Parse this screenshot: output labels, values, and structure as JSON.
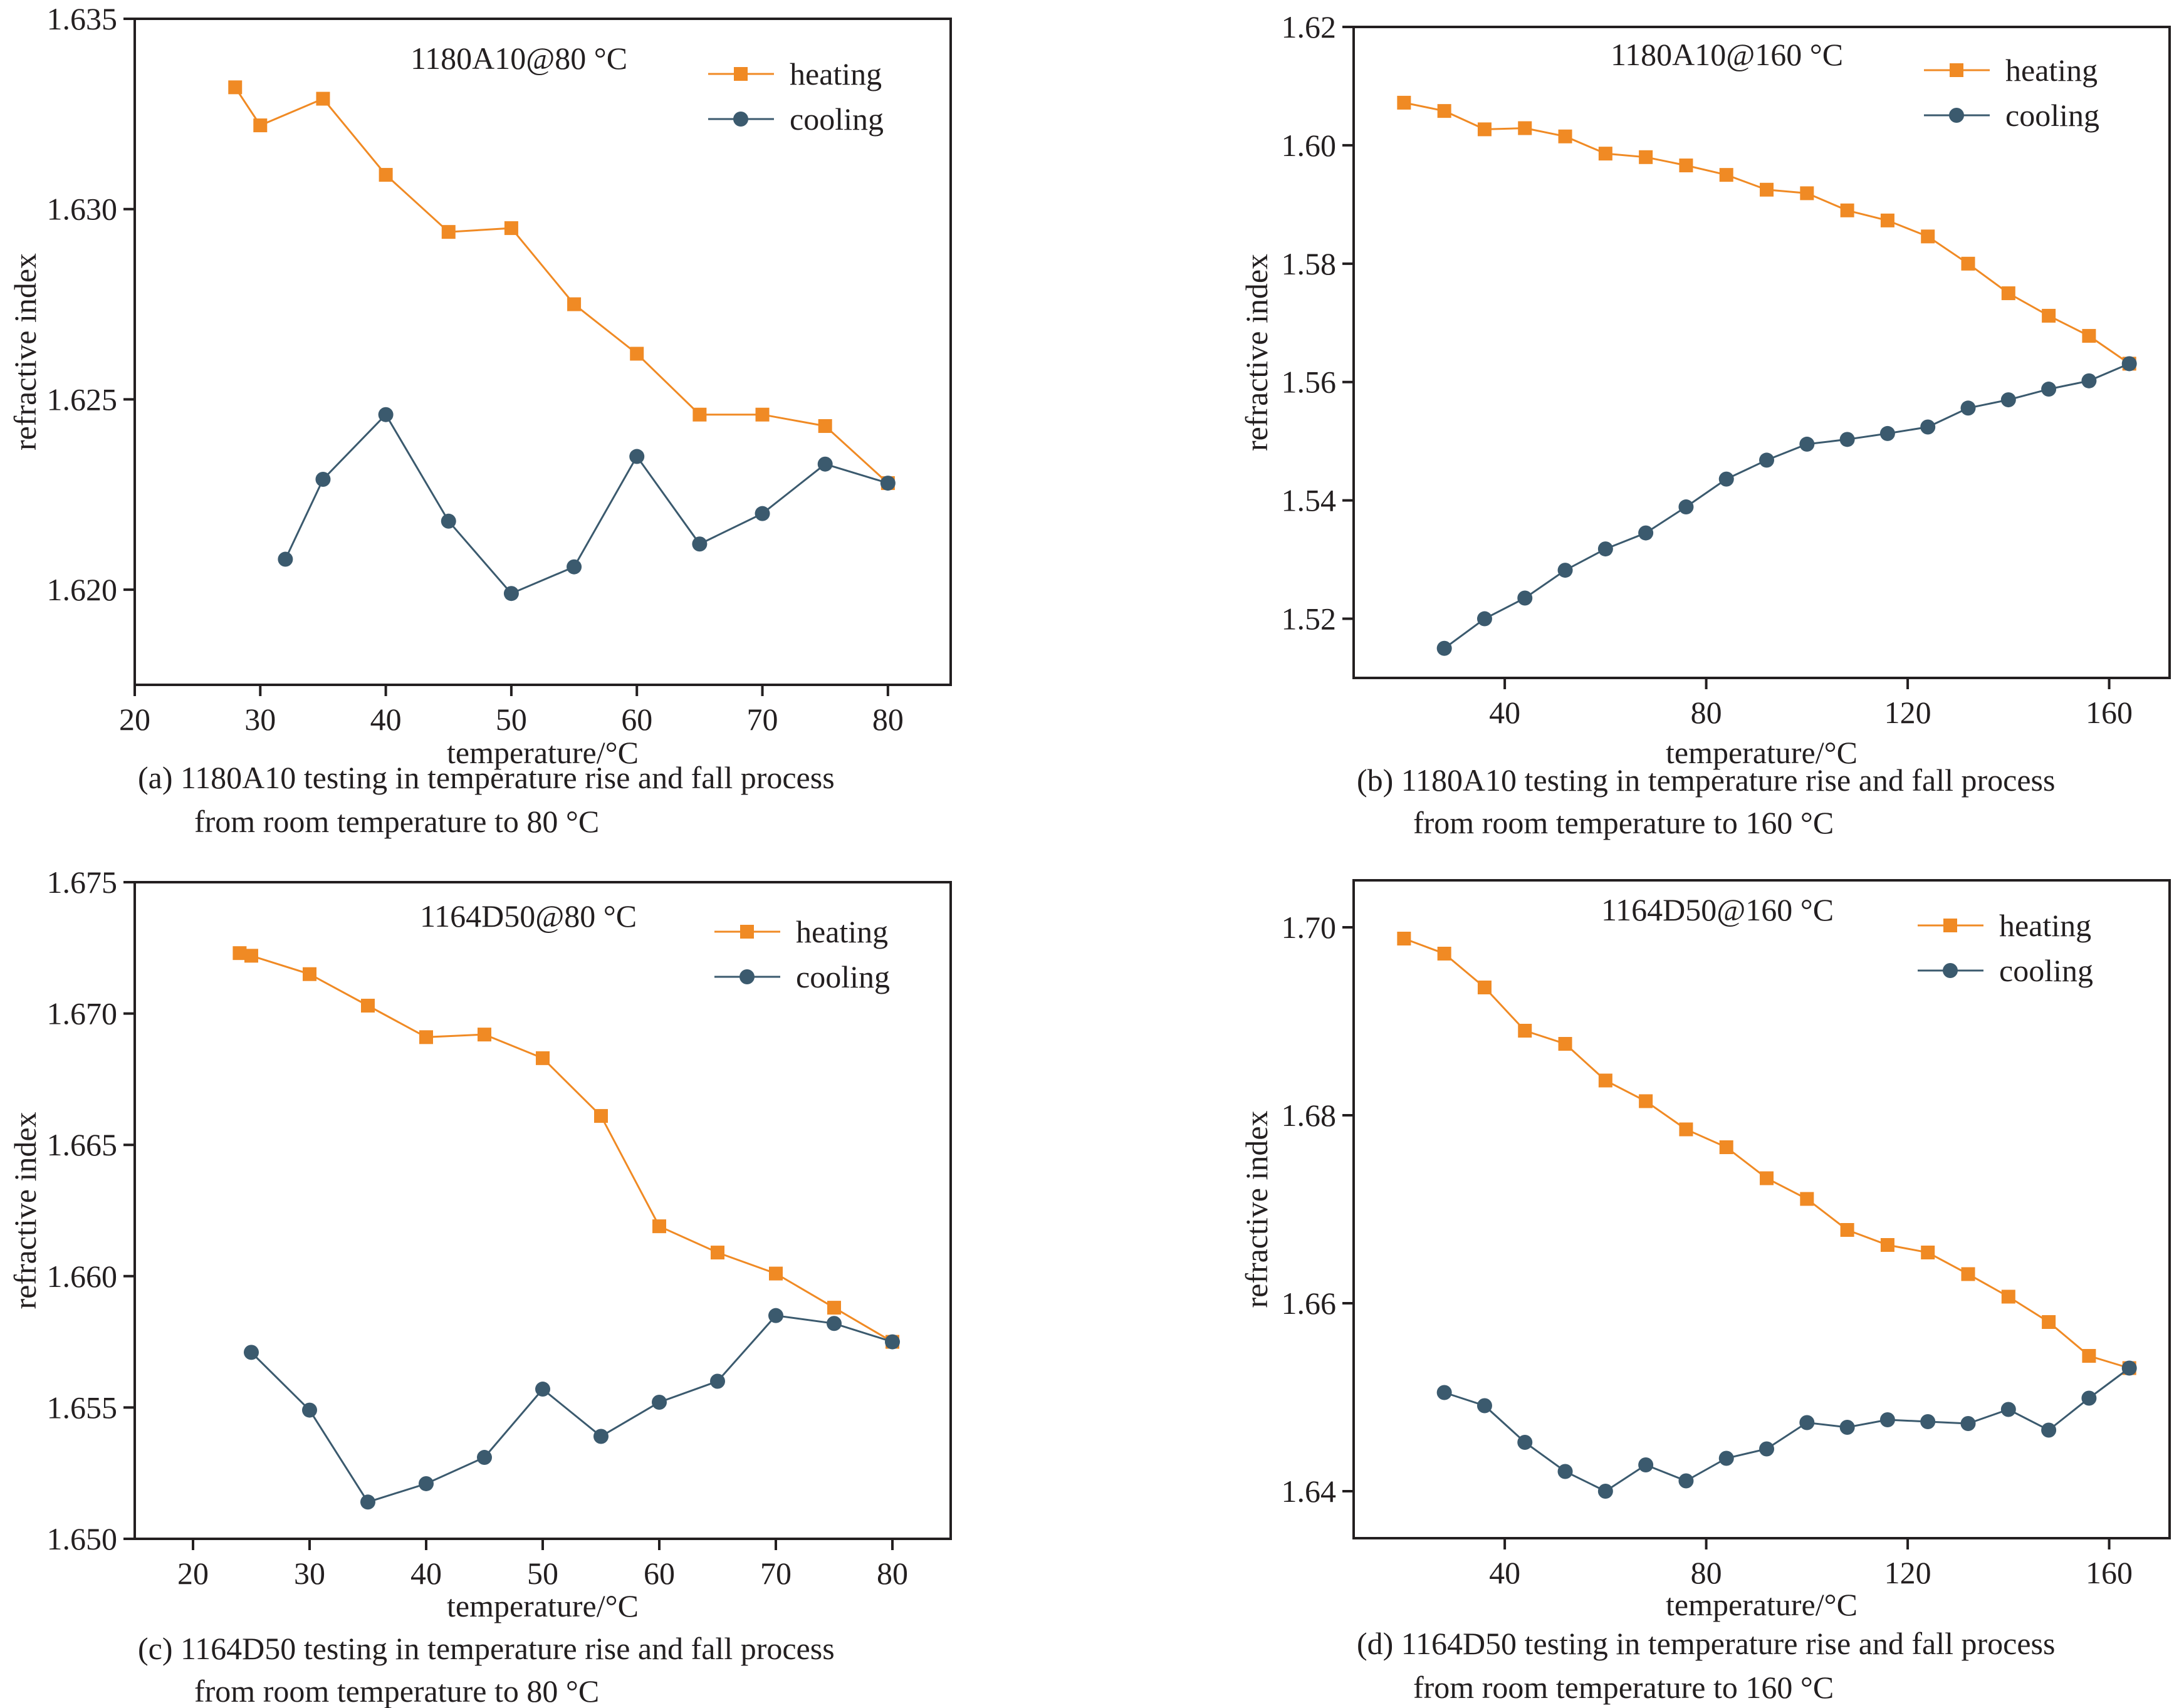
{
  "colors": {
    "heating": "#f08a24",
    "cooling": "#3b5a6e",
    "axis": "#231f20"
  },
  "chart_data": [
    {
      "type": "line",
      "title": "1180A10@80 °C",
      "xlabel": "temperature/°C",
      "ylabel": "refractive index",
      "caption": [
        "(a) 1180A10 testing in temperature rise and fall process",
        "from room temperature to 80 °C"
      ],
      "xlim": [
        20,
        85
      ],
      "ylim": [
        1.6175,
        1.635
      ],
      "xticks": [
        20,
        30,
        40,
        50,
        60,
        70,
        80
      ],
      "xtick_labels": [
        "20",
        "30",
        "40",
        "50",
        "60",
        "70",
        "80"
      ],
      "yticks": [
        1.62,
        1.625,
        1.63,
        1.635
      ],
      "ytick_labels": [
        "1.620",
        "1.625",
        "1.630",
        "1.635"
      ],
      "legend_position": "top-right",
      "series": [
        {
          "name": "heating",
          "marker": "square",
          "x": [
            28,
            30,
            35,
            40,
            45,
            50,
            55,
            60,
            65,
            70,
            75,
            80
          ],
          "y": [
            1.6332,
            1.6322,
            1.6329,
            1.6309,
            1.6294,
            1.6295,
            1.6275,
            1.6262,
            1.6246,
            1.6246,
            1.6243,
            1.6228
          ]
        },
        {
          "name": "cooling",
          "marker": "circle",
          "x": [
            32,
            35,
            40,
            45,
            50,
            55,
            60,
            65,
            70,
            75,
            80
          ],
          "y": [
            1.6208,
            1.6229,
            1.6246,
            1.6218,
            1.6199,
            1.6206,
            1.6235,
            1.6212,
            1.622,
            1.6233,
            1.6228
          ]
        }
      ]
    },
    {
      "type": "line",
      "title": "1180A10@160 °C",
      "xlabel": "temperature/°C",
      "ylabel": "refractive index",
      "caption": [
        "(b) 1180A10 testing in temperature rise and fall process",
        "from room temperature to 160 °C"
      ],
      "xlim": [
        10,
        172
      ],
      "ylim": [
        1.51,
        1.62
      ],
      "xticks": [
        40,
        80,
        120,
        160
      ],
      "xtick_labels": [
        "40",
        "80",
        "120",
        "160"
      ],
      "yticks": [
        1.52,
        1.54,
        1.56,
        1.58,
        1.6,
        1.62
      ],
      "ytick_labels": [
        "1.52",
        "1.54",
        "1.56",
        "1.58",
        "1.60",
        "1.62"
      ],
      "legend_position": "top-right",
      "series": [
        {
          "name": "heating",
          "marker": "square",
          "x": [
            20,
            28,
            36,
            44,
            52,
            60,
            68,
            76,
            84,
            92,
            100,
            108,
            116,
            124,
            132,
            140,
            148,
            156,
            164
          ],
          "y": [
            1.6072,
            1.6058,
            1.6027,
            1.6029,
            1.6015,
            1.5986,
            1.598,
            1.5966,
            1.595,
            1.5925,
            1.5919,
            1.589,
            1.5873,
            1.5846,
            1.58,
            1.575,
            1.5712,
            1.5678,
            1.5631
          ]
        },
        {
          "name": "cooling",
          "marker": "circle",
          "x": [
            28,
            36,
            44,
            52,
            60,
            68,
            76,
            84,
            92,
            100,
            108,
            116,
            124,
            132,
            140,
            148,
            156,
            164
          ],
          "y": [
            1.515,
            1.52,
            1.5235,
            1.5282,
            1.5318,
            1.5345,
            1.5389,
            1.5436,
            1.5468,
            1.5495,
            1.5503,
            1.5513,
            1.5524,
            1.5556,
            1.557,
            1.5588,
            1.5602,
            1.5631
          ]
        }
      ]
    },
    {
      "type": "line",
      "title": "1164D50@80 °C",
      "xlabel": "temperature/°C",
      "ylabel": "refractive index",
      "caption": [
        "(c) 1164D50 testing in temperature rise and fall process",
        "from room temperature to 80 °C"
      ],
      "xlim": [
        15,
        85
      ],
      "ylim": [
        1.65,
        1.675
      ],
      "xticks": [
        20,
        30,
        40,
        50,
        60,
        70,
        80
      ],
      "xtick_labels": [
        "20",
        "30",
        "40",
        "50",
        "60",
        "70",
        "80"
      ],
      "yticks": [
        1.65,
        1.655,
        1.66,
        1.665,
        1.67,
        1.675
      ],
      "ytick_labels": [
        "1.650",
        "1.655",
        "1.660",
        "1.665",
        "1.670",
        "1.675"
      ],
      "legend_position": "top-right",
      "series": [
        {
          "name": "heating",
          "marker": "square",
          "x": [
            24,
            25,
            30,
            35,
            40,
            45,
            50,
            55,
            60,
            65,
            70,
            75,
            80
          ],
          "y": [
            1.6723,
            1.6722,
            1.6715,
            1.6703,
            1.6691,
            1.6692,
            1.6683,
            1.6661,
            1.6619,
            1.6609,
            1.6601,
            1.6588,
            1.6575
          ]
        },
        {
          "name": "cooling",
          "marker": "circle",
          "x": [
            25,
            30,
            35,
            40,
            45,
            50,
            55,
            60,
            65,
            70,
            75,
            80
          ],
          "y": [
            1.6571,
            1.6549,
            1.6514,
            1.6521,
            1.6531,
            1.6557,
            1.6539,
            1.6552,
            1.656,
            1.6585,
            1.6582,
            1.6575
          ]
        }
      ]
    },
    {
      "type": "line",
      "title": "1164D50@160 °C",
      "xlabel": "temperature/°C",
      "ylabel": "refractive index",
      "caption": [
        "(d) 1164D50 testing in temperature rise and fall process",
        "from room temperature to 160 °C"
      ],
      "xlim": [
        10,
        172
      ],
      "ylim": [
        1.635,
        1.705
      ],
      "xticks": [
        40,
        80,
        120,
        160
      ],
      "xtick_labels": [
        "40",
        "80",
        "120",
        "160"
      ],
      "yticks": [
        1.64,
        1.66,
        1.68,
        1.7
      ],
      "ytick_labels": [
        "1.64",
        "1.66",
        "1.68",
        "1.70"
      ],
      "legend_position": "top-right",
      "series": [
        {
          "name": "heating",
          "marker": "square",
          "x": [
            20,
            28,
            36,
            44,
            52,
            60,
            68,
            76,
            84,
            92,
            100,
            108,
            116,
            124,
            132,
            140,
            148,
            156,
            164
          ],
          "y": [
            1.6988,
            1.6972,
            1.6936,
            1.689,
            1.6876,
            1.6837,
            1.6815,
            1.6785,
            1.6766,
            1.6733,
            1.6711,
            1.6678,
            1.6662,
            1.6654,
            1.6631,
            1.6607,
            1.658,
            1.6544,
            1.6531
          ]
        },
        {
          "name": "cooling",
          "marker": "circle",
          "x": [
            28,
            36,
            44,
            52,
            60,
            68,
            76,
            84,
            92,
            100,
            108,
            116,
            124,
            132,
            140,
            148,
            156,
            164
          ],
          "y": [
            1.6505,
            1.6491,
            1.6452,
            1.6421,
            1.64,
            1.6428,
            1.6411,
            1.6435,
            1.6445,
            1.6473,
            1.6468,
            1.6476,
            1.6474,
            1.6472,
            1.6487,
            1.6465,
            1.6499,
            1.6531
          ]
        }
      ]
    }
  ]
}
